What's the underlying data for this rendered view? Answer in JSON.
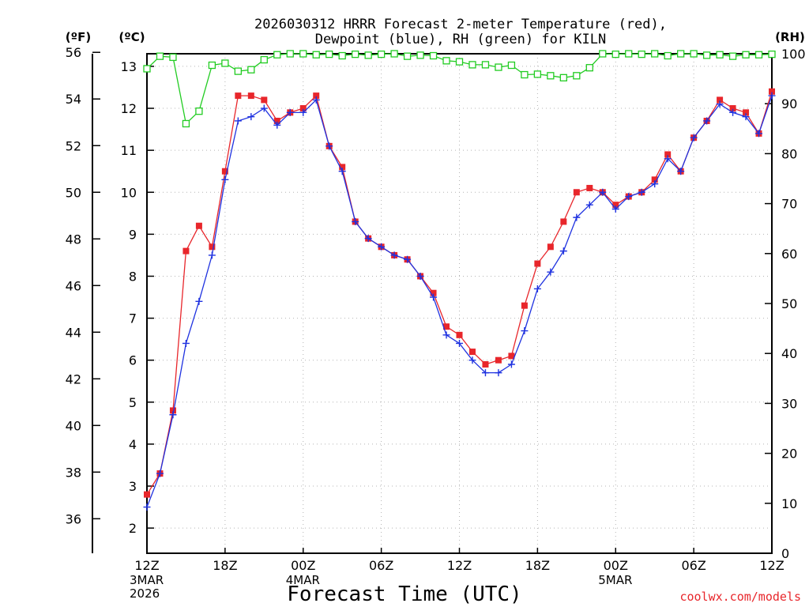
{
  "chart_data": {
    "type": "line",
    "title_line1": "2026030312 HRRR Forecast 2-meter Temperature (red),",
    "title_line2": "Dewpoint (blue), RH (green) for KILN",
    "axis_units": {
      "fahrenheit": "(ºF)",
      "celsius": "(ºC)",
      "rh": "(RH)"
    },
    "xlabel": "Forecast Time (UTC)",
    "credit": "coolwx.com/models",
    "x_ticks": [
      "12Z",
      "18Z",
      "00Z",
      "06Z",
      "12Z",
      "18Z",
      "00Z",
      "06Z",
      "12Z"
    ],
    "x_tick_hours": [
      0,
      6,
      12,
      18,
      24,
      30,
      36,
      42,
      48
    ],
    "date_labels": [
      {
        "hour": 0,
        "lines": [
          "3MAR",
          "2026"
        ]
      },
      {
        "hour": 12,
        "lines": [
          "4MAR"
        ]
      },
      {
        "hour": 36,
        "lines": [
          "5MAR"
        ]
      }
    ],
    "fahrenheit_ticks": [
      36,
      38,
      40,
      42,
      44,
      46,
      48,
      50,
      52,
      54,
      56
    ],
    "celsius_ticks": [
      2,
      3,
      4,
      5,
      6,
      7,
      8,
      9,
      10,
      11,
      12,
      13
    ],
    "rh_ticks": [
      0,
      10,
      20,
      30,
      40,
      50,
      60,
      70,
      80,
      90,
      100
    ],
    "xlim_hours": [
      0,
      48
    ],
    "ylim_celsius": [
      1.4,
      13.3
    ],
    "ylim_rh": [
      0,
      100
    ],
    "grid": true,
    "series": [
      {
        "name": "Temperature",
        "color": "#e8262b",
        "marker": "filled-square",
        "axis": "celsius",
        "values": [
          2.8,
          3.3,
          4.8,
          8.6,
          9.2,
          8.7,
          10.5,
          12.3,
          12.3,
          12.2,
          11.7,
          11.9,
          12.0,
          12.3,
          11.1,
          10.6,
          9.3,
          8.9,
          8.7,
          8.5,
          8.4,
          8.0,
          7.6,
          6.8,
          6.6,
          6.2,
          5.9,
          6.0,
          6.1,
          7.3,
          8.3,
          8.7,
          9.3,
          10.0,
          10.1,
          10.0,
          9.7,
          9.9,
          10.0,
          10.3,
          10.9,
          10.5,
          11.3,
          11.7,
          12.2,
          12.0,
          11.9,
          11.4,
          12.4
        ]
      },
      {
        "name": "Dewpoint",
        "color": "#1f32e0",
        "marker": "plus",
        "axis": "celsius",
        "values": [
          2.5,
          3.3,
          4.7,
          6.4,
          7.4,
          8.5,
          10.3,
          11.7,
          11.8,
          12.0,
          11.6,
          11.9,
          11.9,
          12.2,
          11.1,
          10.5,
          9.3,
          8.9,
          8.7,
          8.5,
          8.4,
          8.0,
          7.5,
          6.6,
          6.4,
          6.0,
          5.7,
          5.7,
          5.9,
          6.7,
          7.7,
          8.1,
          8.6,
          9.4,
          9.7,
          10.0,
          9.6,
          9.9,
          10.0,
          10.2,
          10.8,
          10.5,
          11.3,
          11.7,
          12.1,
          11.9,
          11.8,
          11.4,
          12.3
        ]
      },
      {
        "name": "RH",
        "color": "#22cc22",
        "marker": "open-square",
        "axis": "rh",
        "values": [
          97,
          99.5,
          99.3,
          86,
          88.5,
          97.7,
          98.1,
          96.5,
          96.8,
          98.8,
          99.8,
          100,
          100,
          99.8,
          99.9,
          99.6,
          99.9,
          99.7,
          99.9,
          100,
          99.5,
          99.7,
          99.6,
          98.6,
          98.4,
          97.8,
          97.8,
          97.3,
          97.7,
          95.8,
          95.9,
          95.6,
          95.2,
          95.6,
          97.2,
          100,
          99.9,
          100,
          99.9,
          100,
          99.6,
          100,
          100,
          99.7,
          99.8,
          99.5,
          99.8,
          99.8,
          99.9
        ]
      }
    ]
  }
}
